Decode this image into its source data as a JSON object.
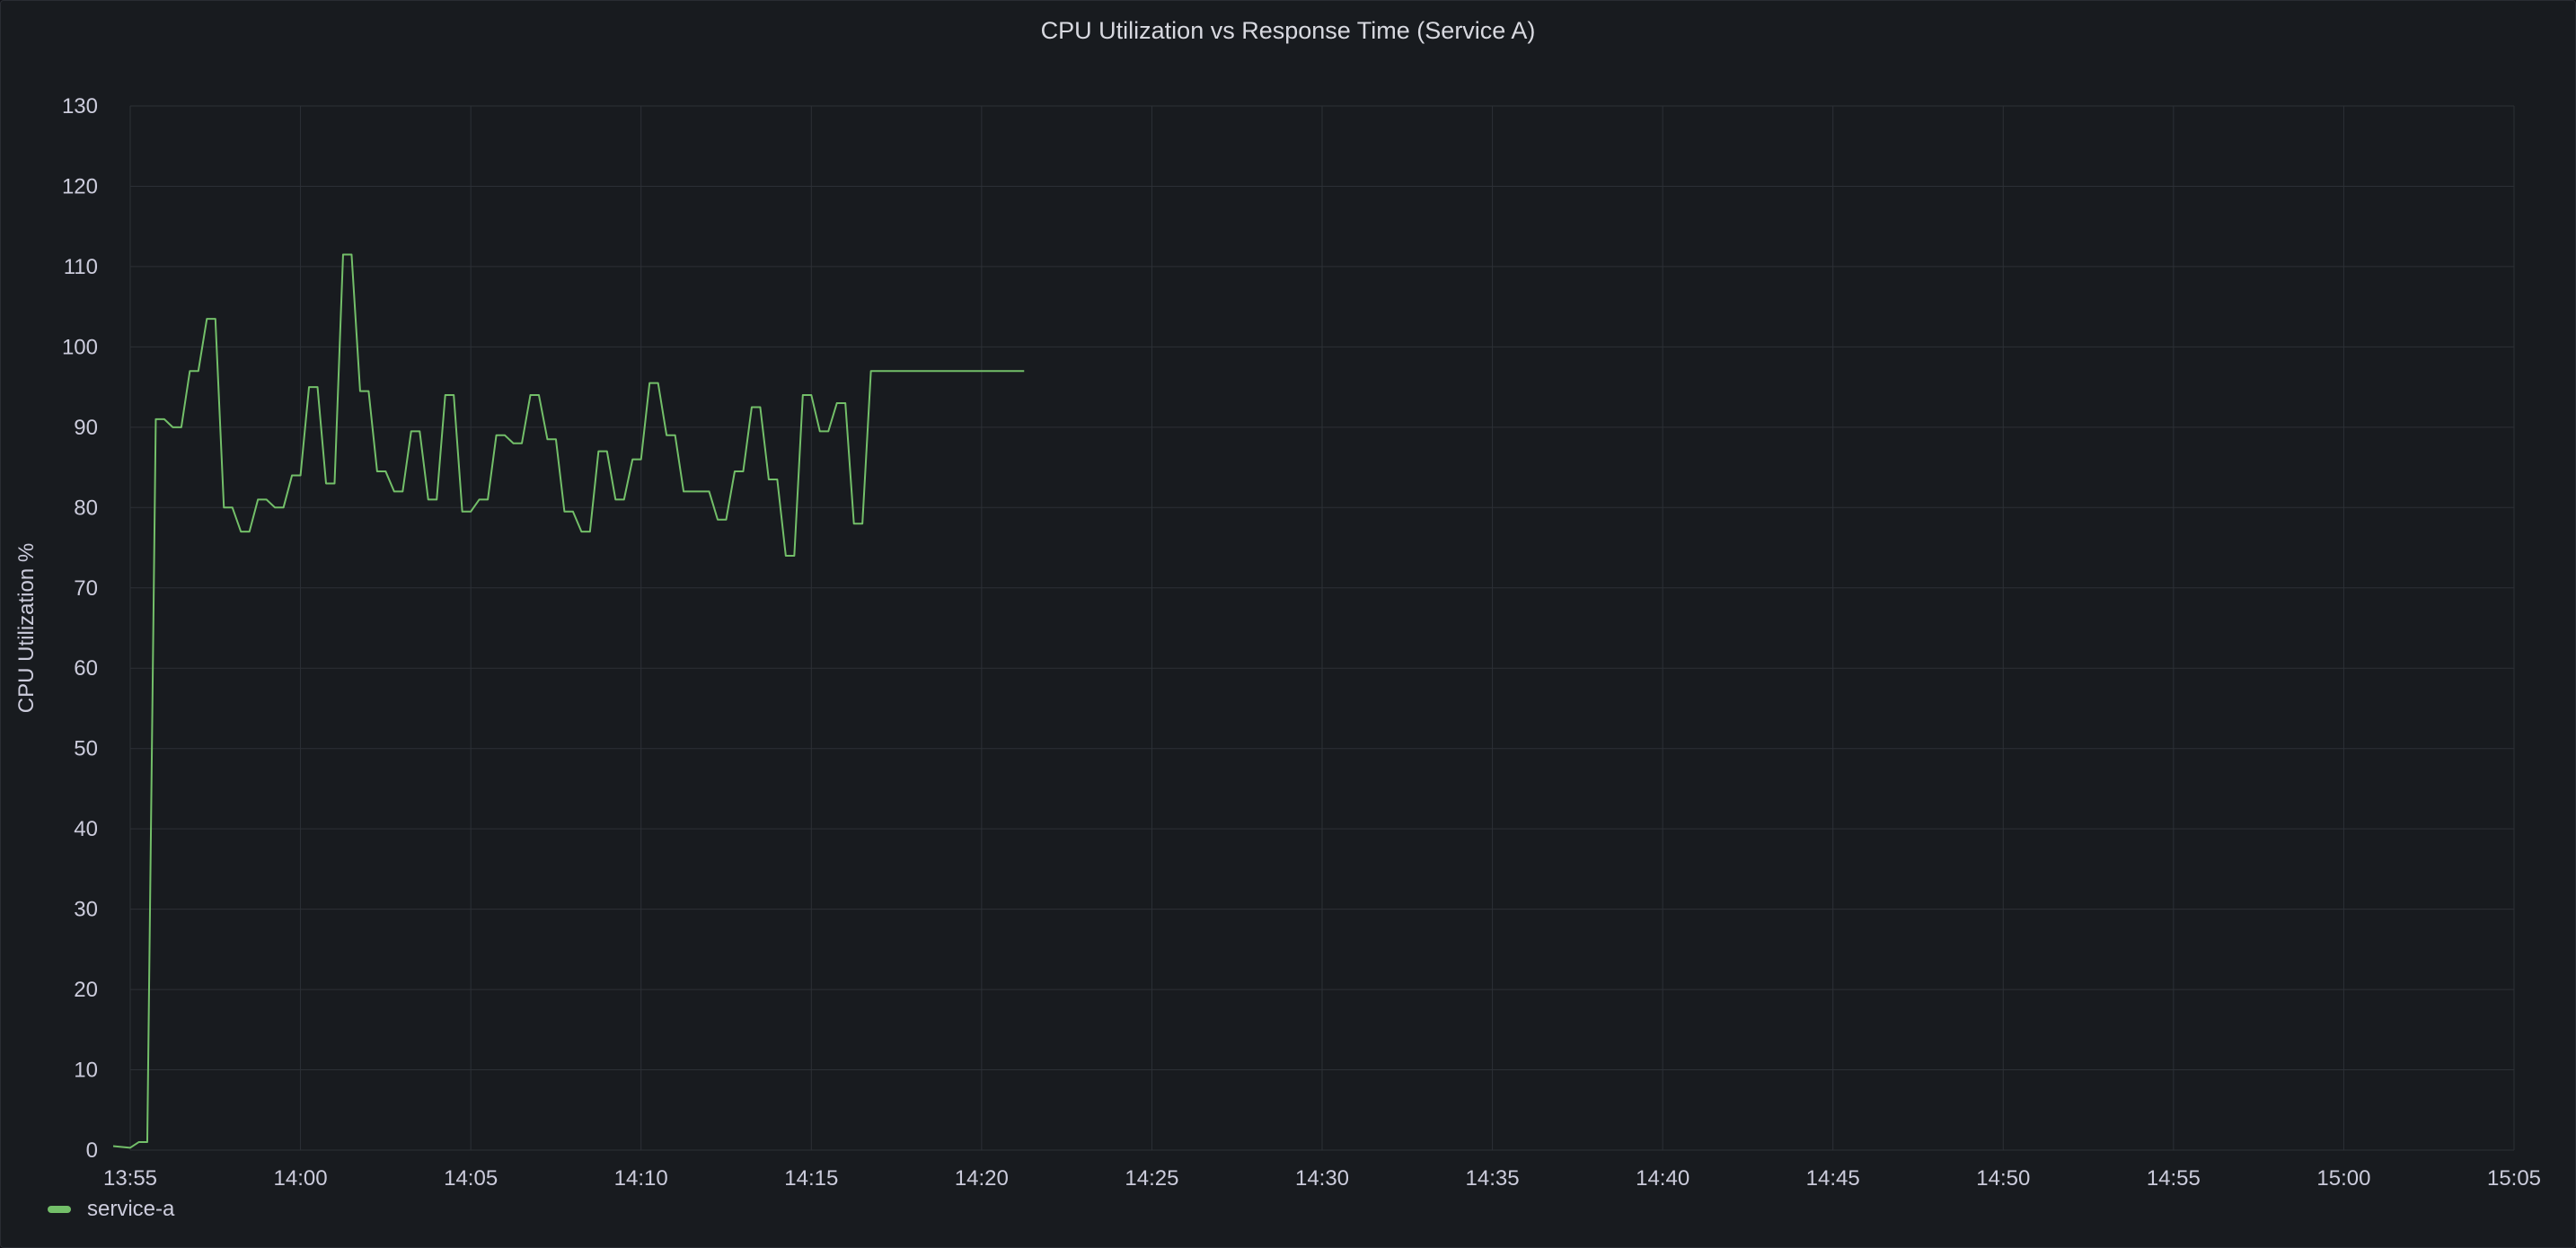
{
  "panel": {
    "title": "CPU Utilization vs Response Time (Service A)"
  },
  "colors": {
    "background": "#181b1f",
    "grid": "#2c3036",
    "series": "#73bf69",
    "text": "#ccccdc"
  },
  "legend": {
    "placement": "bottom-left",
    "items": [
      {
        "label": "service-a",
        "color": "#73bf69"
      }
    ]
  },
  "chart_data": {
    "type": "line",
    "title": "CPU Utilization vs Response Time (Service A)",
    "xlabel": "",
    "ylabel": "CPU Utilization %",
    "grid": true,
    "xlim": [
      "13:55",
      "15:05"
    ],
    "ylim": [
      0,
      130
    ],
    "x_ticks": [
      "13:55",
      "14:00",
      "14:05",
      "14:10",
      "14:15",
      "14:20",
      "14:25",
      "14:30",
      "14:35",
      "14:40",
      "14:45",
      "14:50",
      "14:55",
      "15:00",
      "15:05"
    ],
    "y_ticks": [
      0,
      10,
      20,
      30,
      40,
      50,
      60,
      70,
      80,
      90,
      100,
      110,
      120,
      130
    ],
    "series": [
      {
        "name": "service-a",
        "color": "#73bf69",
        "points": [
          [
            "13:54:30",
            0.5
          ],
          [
            "13:55:00",
            0.3
          ],
          [
            "13:55:15",
            1.0
          ],
          [
            "13:55:30",
            1.0
          ],
          [
            "13:55:45",
            91
          ],
          [
            "13:56:00",
            91
          ],
          [
            "13:56:15",
            90
          ],
          [
            "13:56:30",
            90
          ],
          [
            "13:56:45",
            97
          ],
          [
            "13:57:00",
            97
          ],
          [
            "13:57:15",
            103.5
          ],
          [
            "13:57:30",
            103.5
          ],
          [
            "13:57:45",
            80
          ],
          [
            "13:58:00",
            80
          ],
          [
            "13:58:15",
            77
          ],
          [
            "13:58:30",
            77
          ],
          [
            "13:58:45",
            81
          ],
          [
            "13:59:00",
            81
          ],
          [
            "13:59:15",
            80
          ],
          [
            "13:59:30",
            80
          ],
          [
            "13:59:45",
            84
          ],
          [
            "14:00:00",
            84
          ],
          [
            "14:00:15",
            95
          ],
          [
            "14:00:30",
            95
          ],
          [
            "14:00:45",
            83
          ],
          [
            "14:01:00",
            83
          ],
          [
            "14:01:15",
            111.5
          ],
          [
            "14:01:30",
            111.5
          ],
          [
            "14:01:45",
            94.5
          ],
          [
            "14:02:00",
            94.5
          ],
          [
            "14:02:15",
            84.5
          ],
          [
            "14:02:30",
            84.5
          ],
          [
            "14:02:45",
            82
          ],
          [
            "14:03:00",
            82
          ],
          [
            "14:03:15",
            89.5
          ],
          [
            "14:03:30",
            89.5
          ],
          [
            "14:03:45",
            81
          ],
          [
            "14:04:00",
            81
          ],
          [
            "14:04:15",
            94
          ],
          [
            "14:04:30",
            94
          ],
          [
            "14:04:45",
            79.5
          ],
          [
            "14:05:00",
            79.5
          ],
          [
            "14:05:15",
            81
          ],
          [
            "14:05:30",
            81
          ],
          [
            "14:05:45",
            89
          ],
          [
            "14:06:00",
            89
          ],
          [
            "14:06:15",
            88
          ],
          [
            "14:06:30",
            88
          ],
          [
            "14:06:45",
            94
          ],
          [
            "14:07:00",
            94
          ],
          [
            "14:07:15",
            88.5
          ],
          [
            "14:07:30",
            88.5
          ],
          [
            "14:07:45",
            79.5
          ],
          [
            "14:08:00",
            79.5
          ],
          [
            "14:08:15",
            77
          ],
          [
            "14:08:30",
            77
          ],
          [
            "14:08:45",
            87
          ],
          [
            "14:09:00",
            87
          ],
          [
            "14:09:15",
            81
          ],
          [
            "14:09:30",
            81
          ],
          [
            "14:09:45",
            86
          ],
          [
            "14:10:00",
            86
          ],
          [
            "14:10:15",
            95.5
          ],
          [
            "14:10:30",
            95.5
          ],
          [
            "14:10:45",
            89
          ],
          [
            "14:11:00",
            89
          ],
          [
            "14:11:15",
            82
          ],
          [
            "14:11:30",
            82
          ],
          [
            "14:11:45",
            82
          ],
          [
            "14:12:00",
            82
          ],
          [
            "14:12:15",
            78.5
          ],
          [
            "14:12:30",
            78.5
          ],
          [
            "14:12:45",
            84.5
          ],
          [
            "14:13:00",
            84.5
          ],
          [
            "14:13:15",
            92.5
          ],
          [
            "14:13:30",
            92.5
          ],
          [
            "14:13:45",
            83.5
          ],
          [
            "14:14:00",
            83.5
          ],
          [
            "14:14:15",
            74
          ],
          [
            "14:14:30",
            74
          ],
          [
            "14:14:45",
            94
          ],
          [
            "14:15:00",
            94
          ],
          [
            "14:15:15",
            89.5
          ],
          [
            "14:15:30",
            89.5
          ],
          [
            "14:15:45",
            93
          ],
          [
            "14:16:00",
            93
          ],
          [
            "14:16:15",
            78
          ],
          [
            "14:16:30",
            78
          ],
          [
            "14:16:45",
            97
          ],
          [
            "14:17:00",
            97
          ],
          [
            "14:21:15",
            97
          ]
        ]
      }
    ]
  }
}
